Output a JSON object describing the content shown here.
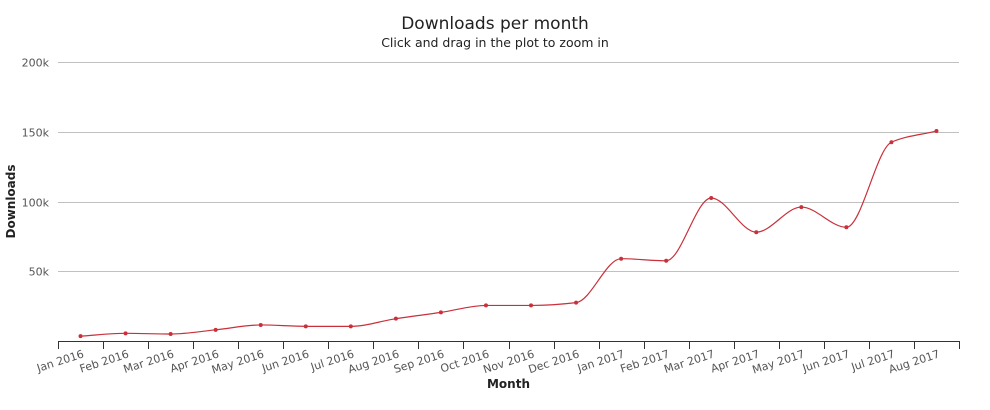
{
  "chart_data": {
    "type": "line",
    "title": "Downloads per month",
    "subtitle": "Click and drag in the plot to zoom in",
    "xlabel": "Month",
    "ylabel": "Downloads",
    "categories": [
      "Jan 2016",
      "Feb 2016",
      "Mar 2016",
      "Apr 2016",
      "May 2016",
      "Jun 2016",
      "Jul 2016",
      "Aug 2016",
      "Sep 2016",
      "Oct 2016",
      "Nov 2016",
      "Dec 2016",
      "Jan 2017",
      "Feb 2017",
      "Mar 2017",
      "Apr 2017",
      "May 2017",
      "Jun 2017",
      "Jul 2017",
      "Aug 2017"
    ],
    "series": [
      {
        "values": [
          3500,
          5500,
          5000,
          8000,
          11500,
          10500,
          10500,
          16000,
          20500,
          25500,
          25500,
          27500,
          59000,
          57500,
          102500,
          78000,
          96000,
          81500,
          142500,
          150500
        ]
      }
    ],
    "ylim": [
      0,
      200000
    ],
    "yticks": [
      50000,
      100000,
      150000,
      200000
    ],
    "ytick_labels": [
      "50k",
      "100k",
      "150k",
      "200k"
    ],
    "grid": true,
    "legend": "none",
    "colors": {
      "series": "#c9303a",
      "grid": "#c0c0c0",
      "axis": "#333333"
    }
  }
}
